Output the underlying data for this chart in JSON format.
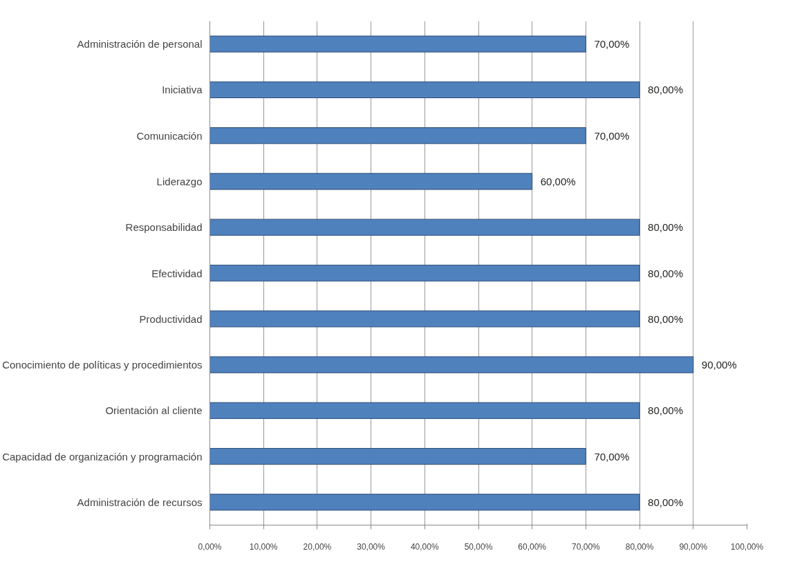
{
  "chart_data": {
    "type": "bar",
    "orientation": "horizontal",
    "categories": [
      "Administración de personal",
      "Iniciativa",
      "Comunicación",
      "Liderazgo",
      "Responsabilidad",
      "Efectividad",
      "Productividad",
      "Conocimiento de políticas y procedimientos",
      "Orientación al cliente",
      "Capacidad de organización y programación",
      "Administración de recursos"
    ],
    "values": [
      70,
      80,
      70,
      60,
      80,
      80,
      80,
      90,
      80,
      70,
      80
    ],
    "value_labels": [
      "70,00%",
      "80,00%",
      "70,00%",
      "60,00%",
      "80,00%",
      "80,00%",
      "80,00%",
      "90,00%",
      "80,00%",
      "70,00%",
      "80,00%"
    ],
    "color": "#4f81bd",
    "xlim": [
      0,
      100
    ],
    "xticks": [
      {
        "value": 0,
        "label": "0,00%"
      },
      {
        "value": 10,
        "label": "10,00%"
      },
      {
        "value": 20,
        "label": "20,00%"
      },
      {
        "value": 30,
        "label": "30,00%"
      },
      {
        "value": 40,
        "label": "40,00%"
      },
      {
        "value": 50,
        "label": "50,00%"
      },
      {
        "value": 60,
        "label": "60,00%"
      },
      {
        "value": 70,
        "label": "70,00%"
      },
      {
        "value": 80,
        "label": "80,00%"
      },
      {
        "value": 90,
        "label": "90,00%"
      },
      {
        "value": 100,
        "label": "100,00%"
      }
    ],
    "grid": "x"
  }
}
